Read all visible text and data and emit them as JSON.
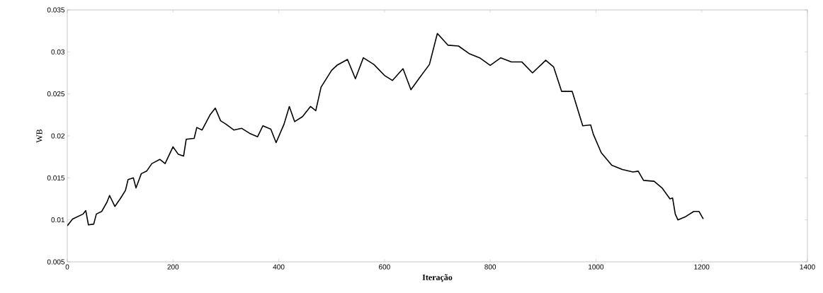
{
  "chart_data": {
    "type": "line",
    "xlabel": "Iteração",
    "ylabel": "WB",
    "xlim": [
      0,
      1400
    ],
    "xticks": [
      0,
      200,
      400,
      600,
      800,
      1000,
      1200,
      1400
    ],
    "ylim": [
      0.005,
      0.035
    ],
    "yticks": [
      0.005,
      0.01,
      0.015,
      0.02,
      0.025,
      0.03,
      0.035
    ],
    "series": [
      {
        "color": "#000000",
        "x": [
          0,
          10,
          20,
          30,
          35,
          40,
          50,
          55,
          65,
          75,
          80,
          90,
          100,
          110,
          115,
          125,
          130,
          140,
          150,
          160,
          175,
          185,
          200,
          210,
          220,
          225,
          240,
          245,
          255,
          270,
          280,
          290,
          300,
          315,
          330,
          345,
          360,
          370,
          385,
          395,
          410,
          420,
          430,
          445,
          460,
          470,
          480,
          500,
          510,
          530,
          545,
          560,
          580,
          600,
          615,
          635,
          650,
          665,
          685,
          700,
          720,
          740,
          760,
          780,
          800,
          820,
          840,
          860,
          880,
          905,
          920,
          935,
          955,
          975,
          990,
          995,
          1010,
          1030,
          1050,
          1070,
          1080,
          1090,
          1110,
          1125,
          1140,
          1145,
          1150,
          1155,
          1170,
          1185,
          1195,
          1203
        ],
        "values": [
          0.0093,
          0.0101,
          0.0104,
          0.0107,
          0.0111,
          0.0094,
          0.0095,
          0.0107,
          0.011,
          0.0121,
          0.0129,
          0.0116,
          0.0125,
          0.0135,
          0.0148,
          0.015,
          0.0138,
          0.0155,
          0.0158,
          0.0167,
          0.0172,
          0.0167,
          0.0187,
          0.0178,
          0.0176,
          0.0196,
          0.0197,
          0.021,
          0.0207,
          0.0225,
          0.0233,
          0.0218,
          0.0214,
          0.0207,
          0.0209,
          0.0203,
          0.0199,
          0.0212,
          0.0208,
          0.0192,
          0.0214,
          0.0235,
          0.0217,
          0.0223,
          0.0235,
          0.023,
          0.0258,
          0.0278,
          0.0284,
          0.0291,
          0.0268,
          0.0293,
          0.0285,
          0.0272,
          0.0266,
          0.028,
          0.0255,
          0.0268,
          0.0285,
          0.0322,
          0.0308,
          0.0307,
          0.0298,
          0.0293,
          0.0284,
          0.0293,
          0.0288,
          0.0288,
          0.0275,
          0.029,
          0.0282,
          0.0253,
          0.0253,
          0.0212,
          0.0213,
          0.0202,
          0.018,
          0.0165,
          0.016,
          0.0157,
          0.0158,
          0.0147,
          0.0146,
          0.0138,
          0.0125,
          0.0126,
          0.0107,
          0.01,
          0.0104,
          0.011,
          0.011,
          0.0101
        ]
      }
    ]
  }
}
